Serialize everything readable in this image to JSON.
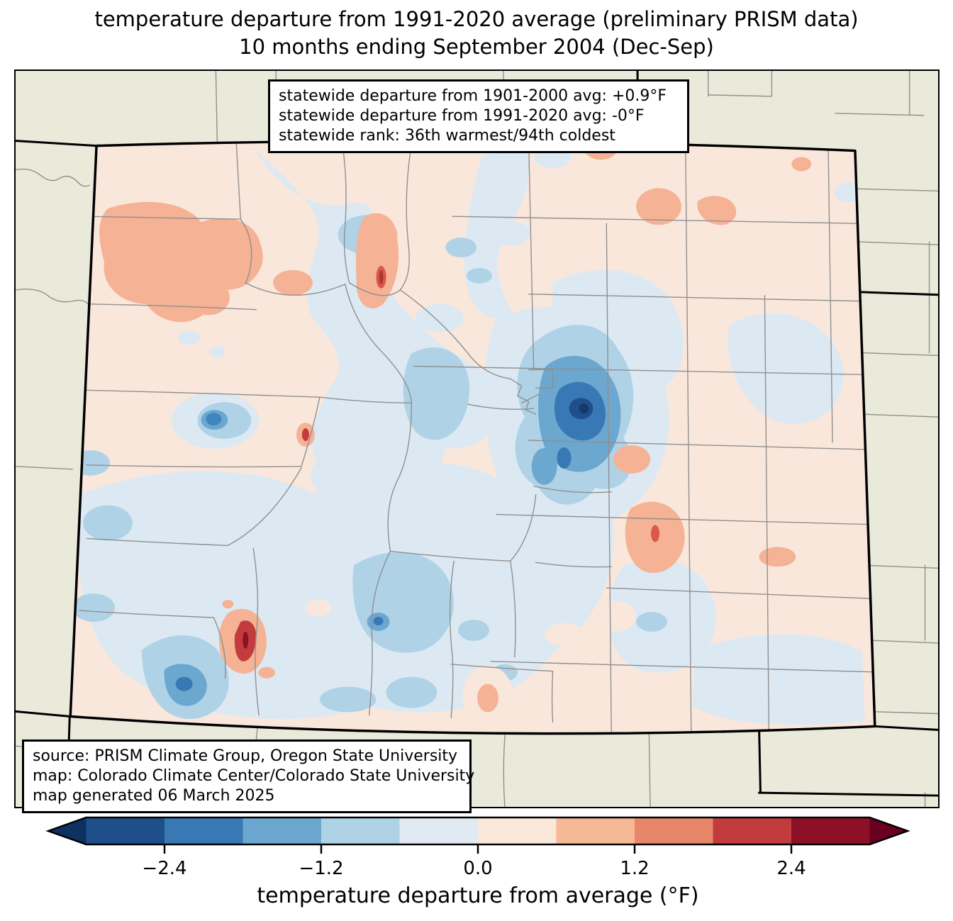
{
  "title": {
    "line1": "temperature departure from 1991-2020 average (preliminary PRISM data)",
    "line2": "10 months ending September 2004 (Dec-Sep)"
  },
  "stats_box": {
    "lines": [
      "statewide departure from 1901-2000 avg: +0.9°F",
      "statewide departure from 1991-2020 avg: -0°F",
      "statewide rank: 36th warmest/94th coldest"
    ]
  },
  "source_box": {
    "lines": [
      "source: PRISM Climate Group, Oregon State University",
      "map: Colorado Climate Center/Colorado State University",
      "map generated 06 March 2025"
    ]
  },
  "colorbar": {
    "label": "temperature departure from average (°F)",
    "tick_labels": [
      "−2.4",
      "−1.2",
      "0.0",
      "1.2",
      "2.4"
    ],
    "tick_values": [
      -2.4,
      -1.2,
      0.0,
      1.2,
      2.4
    ],
    "range": [
      -3,
      3
    ],
    "segment_colors": [
      "#1e4f8b",
      "#3878b4",
      "#6ba7cf",
      "#afd2e6",
      "#e1eaf3",
      "#fae8db",
      "#f6b995",
      "#e8866a",
      "#c23b3d",
      "#8c1127"
    ],
    "under_color": "#0d3161",
    "over_color": "#690020"
  },
  "map": {
    "region": "Colorado",
    "palette": {
      "outside_state": "#eaeada",
      "county_line": "#8f8f8f",
      "state_line": "#000000",
      "base_warm": "#fae7dc",
      "cool_1": "#dce9f2",
      "cool_2": "#b0d2e7",
      "cool_3": "#6ba7cf",
      "cool_4": "#3878b4",
      "cool_5": "#1e4f8b",
      "cool_6": "#143a66",
      "warm_2": "#f5b295",
      "warm_3": "#e8866a",
      "warm_4": "#c23b3d",
      "warm_5": "#8c1127"
    }
  }
}
